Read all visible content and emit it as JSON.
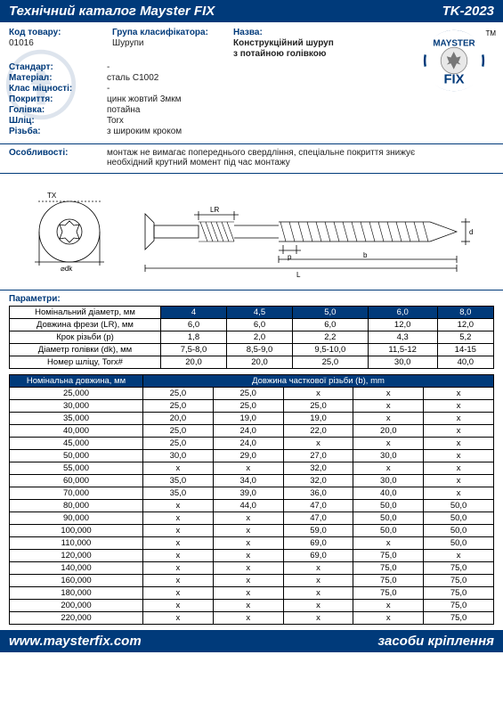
{
  "header": {
    "left": "Технічний каталог Mayster FIX",
    "right": "TK-2023"
  },
  "footer": {
    "left": "www.maysterfix.com",
    "right": "засоби кріплення"
  },
  "labels": {
    "code": "Код товару:",
    "group": "Група класифікатора:",
    "name": "Назва:",
    "standard": "Стандарт:",
    "material": "Матеріал:",
    "strength": "Клас міцності:",
    "coating": "Покриття:",
    "head": "Голівка:",
    "slot": "Шліц:",
    "thread": "Різьба:",
    "features": "Особливості:",
    "params": "Параметри:"
  },
  "info": {
    "code": "01016",
    "group": "Шурупи",
    "name1": "Конструкційний шуруп",
    "name2": "з потайною голівкою",
    "standard": "-",
    "material": "сталь С1002",
    "strength": "-",
    "coating": "цинк жовтий 3мкм",
    "head": "потайна",
    "slot": "Torx",
    "thread": "з широким кроком",
    "features": "монтаж не вимагає попереднього свердління, спеціальне покриття знижує необхідний крутний момент під час монтажу"
  },
  "logo": {
    "top": "MAYSTER",
    "bottom": "FIX",
    "tm": "TM"
  },
  "params_table": {
    "rows": [
      {
        "label": "Номінальний діаметр, мм",
        "cells": [
          "4",
          "4,5",
          "5,0",
          "6,0",
          "8,0"
        ],
        "header": true
      },
      {
        "label": "Довжина фрези (LR), мм",
        "cells": [
          "6,0",
          "6,0",
          "6,0",
          "12,0",
          "12,0"
        ]
      },
      {
        "label": "Крок різьби (p)",
        "cells": [
          "1,8",
          "2,0",
          "2,2",
          "4,3",
          "5,2"
        ]
      },
      {
        "label": "Діаметр голівки (dk), мм",
        "cells": [
          "7,5-8,0",
          "8,5-9,0",
          "9,5-10,0",
          "11,5-12",
          "14-15"
        ]
      },
      {
        "label": "Номер шліцу, Torx#",
        "cells": [
          "20,0",
          "20,0",
          "25,0",
          "30,0",
          "40,0"
        ]
      }
    ]
  },
  "length_table": {
    "head_left": "Номінальна довжина, мм",
    "head_right": "Довжина часткової різьби (b), mm",
    "rows": [
      {
        "len": "25,000",
        "cells": [
          "25,0",
          "25,0",
          "x",
          "x",
          "x"
        ]
      },
      {
        "len": "30,000",
        "cells": [
          "25,0",
          "25,0",
          "25,0",
          "x",
          "x"
        ]
      },
      {
        "len": "35,000",
        "cells": [
          "20,0",
          "19,0",
          "19,0",
          "x",
          "x"
        ]
      },
      {
        "len": "40,000",
        "cells": [
          "25,0",
          "24,0",
          "22,0",
          "20,0",
          "x"
        ]
      },
      {
        "len": "45,000",
        "cells": [
          "25,0",
          "24,0",
          "x",
          "x",
          "x"
        ]
      },
      {
        "len": "50,000",
        "cells": [
          "30,0",
          "29,0",
          "27,0",
          "30,0",
          "x"
        ]
      },
      {
        "len": "55,000",
        "cells": [
          "x",
          "x",
          "32,0",
          "x",
          "x"
        ]
      },
      {
        "len": "60,000",
        "cells": [
          "35,0",
          "34,0",
          "32,0",
          "30,0",
          "x"
        ]
      },
      {
        "len": "70,000",
        "cells": [
          "35,0",
          "39,0",
          "36,0",
          "40,0",
          "x"
        ]
      },
      {
        "len": "80,000",
        "cells": [
          "x",
          "44,0",
          "47,0",
          "50,0",
          "50,0"
        ]
      },
      {
        "len": "90,000",
        "cells": [
          "x",
          "x",
          "47,0",
          "50,0",
          "50,0"
        ]
      },
      {
        "len": "100,000",
        "cells": [
          "x",
          "x",
          "59,0",
          "50,0",
          "50,0"
        ]
      },
      {
        "len": "110,000",
        "cells": [
          "x",
          "x",
          "69,0",
          "x",
          "50,0"
        ]
      },
      {
        "len": "120,000",
        "cells": [
          "x",
          "x",
          "69,0",
          "75,0",
          "x"
        ]
      },
      {
        "len": "140,000",
        "cells": [
          "x",
          "x",
          "x",
          "75,0",
          "75,0"
        ]
      },
      {
        "len": "160,000",
        "cells": [
          "x",
          "x",
          "x",
          "75,0",
          "75,0"
        ]
      },
      {
        "len": "180,000",
        "cells": [
          "x",
          "x",
          "x",
          "75,0",
          "75,0"
        ]
      },
      {
        "len": "200,000",
        "cells": [
          "x",
          "x",
          "x",
          "x",
          "75,0"
        ]
      },
      {
        "len": "220,000",
        "cells": [
          "x",
          "x",
          "x",
          "x",
          "75,0"
        ]
      }
    ]
  },
  "colors": {
    "brand": "#003a7a",
    "bg": "#ffffff",
    "text": "#222222"
  }
}
